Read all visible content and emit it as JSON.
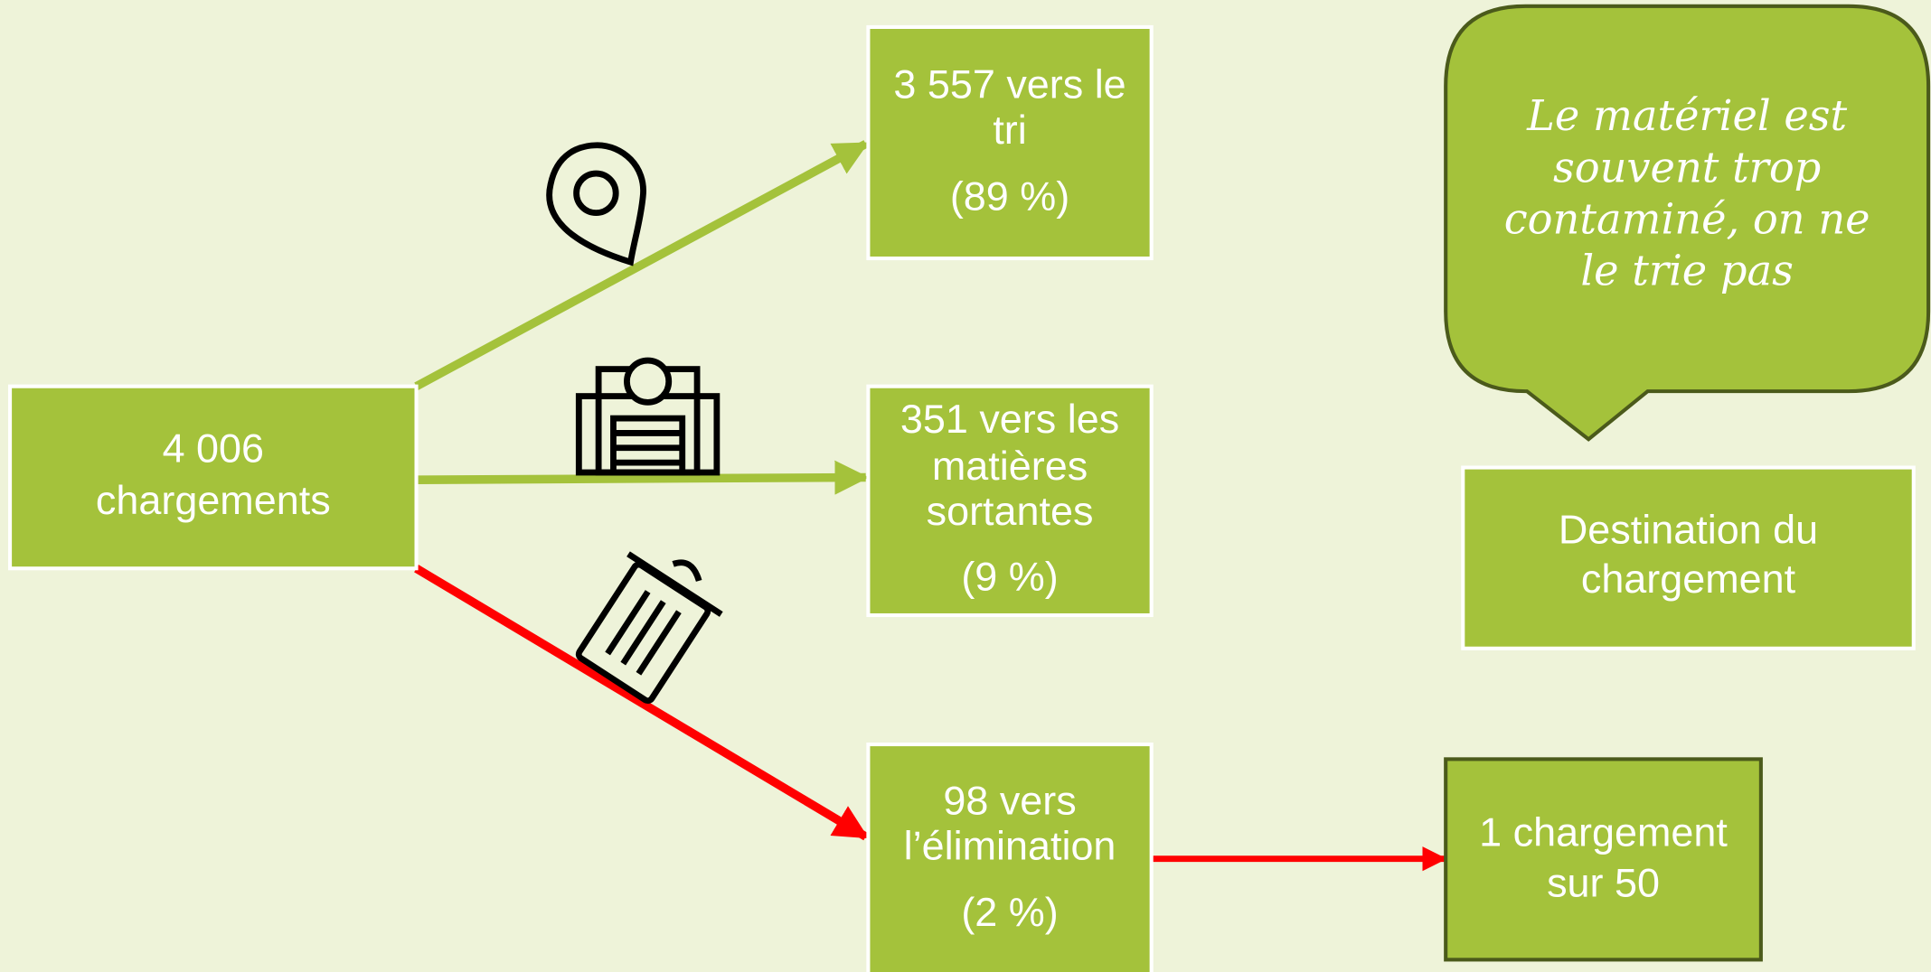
{
  "nodes": [
    {
      "lines": [
        "4 006",
        "chargements"
      ]
    },
    {
      "lines": [
        "3 557 vers le",
        "tri"
      ],
      "share": "(89 %)"
    },
    {
      "lines": [
        "351 vers les",
        "matières",
        "sortantes"
      ],
      "share": "(9 %)"
    },
    {
      "lines": [
        "98 vers",
        "l’élimination"
      ],
      "share": "(2 %)"
    },
    {
      "lines": [
        "1 chargement",
        "sur 50"
      ]
    }
  ],
  "callout": {
    "lines": [
      "Le matériel est",
      "souvent trop",
      "contaminé, on ne",
      "le trie pas"
    ]
  },
  "legend": {
    "lines": [
      "Destination du",
      "chargement"
    ]
  }
}
